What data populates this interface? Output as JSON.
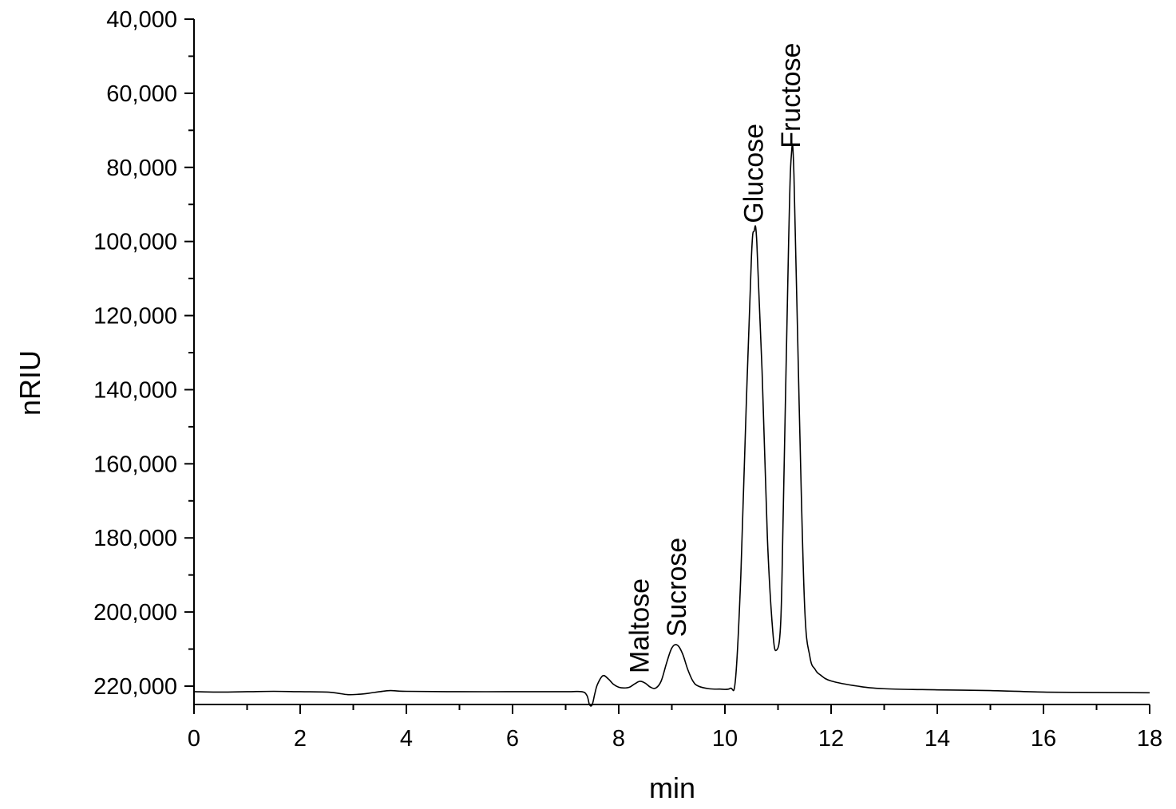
{
  "chart_data": {
    "type": "line",
    "title": "",
    "xlabel": "min",
    "ylabel": "nRIU",
    "xlim": [
      0,
      18
    ],
    "ylim": [
      225000,
      40000
    ],
    "y_axis_inverted": true,
    "grid": false,
    "x_ticks": [
      0,
      2,
      4,
      6,
      8,
      10,
      12,
      14,
      16,
      18
    ],
    "x_tick_labels": [
      "0",
      "2",
      "4",
      "6",
      "8",
      "10",
      "12",
      "14",
      "16",
      "18"
    ],
    "y_ticks": [
      40000,
      60000,
      80000,
      100000,
      120000,
      140000,
      160000,
      180000,
      200000,
      220000
    ],
    "y_tick_labels": [
      "40,000",
      "60,000",
      "80,000",
      "100,000",
      "120,000",
      "140,000",
      "160,000",
      "180,000",
      "200,000",
      "220,000"
    ],
    "series": [
      {
        "points": [
          [
            0,
            221500
          ],
          [
            0.5,
            221600
          ],
          [
            1.0,
            221500
          ],
          [
            1.5,
            221400
          ],
          [
            2.0,
            221500
          ],
          [
            2.5,
            221600
          ],
          [
            2.7,
            221900
          ],
          [
            2.9,
            222300
          ],
          [
            3.1,
            222200
          ],
          [
            3.3,
            221900
          ],
          [
            3.5,
            221500
          ],
          [
            3.7,
            221200
          ],
          [
            4.0,
            221400
          ],
          [
            5.0,
            221500
          ],
          [
            6.0,
            221500
          ],
          [
            7.0,
            221500
          ],
          [
            7.3,
            221500
          ],
          [
            7.4,
            222500
          ],
          [
            7.45,
            225000
          ],
          [
            7.5,
            225000
          ],
          [
            7.55,
            222000
          ],
          [
            7.6,
            219500
          ],
          [
            7.7,
            217200
          ],
          [
            7.8,
            218000
          ],
          [
            7.9,
            219500
          ],
          [
            8.0,
            220300
          ],
          [
            8.1,
            220500
          ],
          [
            8.2,
            220300
          ],
          [
            8.3,
            219400
          ],
          [
            8.4,
            218700
          ],
          [
            8.5,
            219200
          ],
          [
            8.6,
            220300
          ],
          [
            8.7,
            220500
          ],
          [
            8.8,
            218600
          ],
          [
            8.9,
            213800
          ],
          [
            9.0,
            209700
          ],
          [
            9.1,
            208900
          ],
          [
            9.2,
            211200
          ],
          [
            9.3,
            215500
          ],
          [
            9.4,
            218700
          ],
          [
            9.5,
            220000
          ],
          [
            9.7,
            220700
          ],
          [
            9.9,
            220800
          ],
          [
            10.1,
            220600
          ],
          [
            10.2,
            218000
          ],
          [
            10.3,
            190000
          ],
          [
            10.4,
            145000
          ],
          [
            10.5,
            104000
          ],
          [
            10.55,
            97200
          ],
          [
            10.6,
            100000
          ],
          [
            10.7,
            135000
          ],
          [
            10.8,
            180000
          ],
          [
            10.9,
            205000
          ],
          [
            10.97,
            210300
          ],
          [
            11.05,
            203000
          ],
          [
            11.1,
            172000
          ],
          [
            11.2,
            100000
          ],
          [
            11.25,
            77000
          ],
          [
            11.3,
            82000
          ],
          [
            11.4,
            145000
          ],
          [
            11.5,
            198000
          ],
          [
            11.6,
            212000
          ],
          [
            11.7,
            215500
          ],
          [
            11.8,
            217000
          ],
          [
            12.0,
            218600
          ],
          [
            12.5,
            220000
          ],
          [
            13.0,
            220700
          ],
          [
            14.0,
            221000
          ],
          [
            15.0,
            221200
          ],
          [
            16.0,
            221600
          ],
          [
            17.0,
            221700
          ],
          [
            18.0,
            221800
          ]
        ]
      }
    ],
    "annotations": [
      {
        "text": "Maltose",
        "x": 8.4,
        "y": 218700
      },
      {
        "text": "Sucrose",
        "x": 9.1,
        "y": 208900
      },
      {
        "text": "Glucose",
        "x": 10.55,
        "y": 97200
      },
      {
        "text": "Fructose",
        "x": 11.25,
        "y": 77000
      }
    ]
  }
}
